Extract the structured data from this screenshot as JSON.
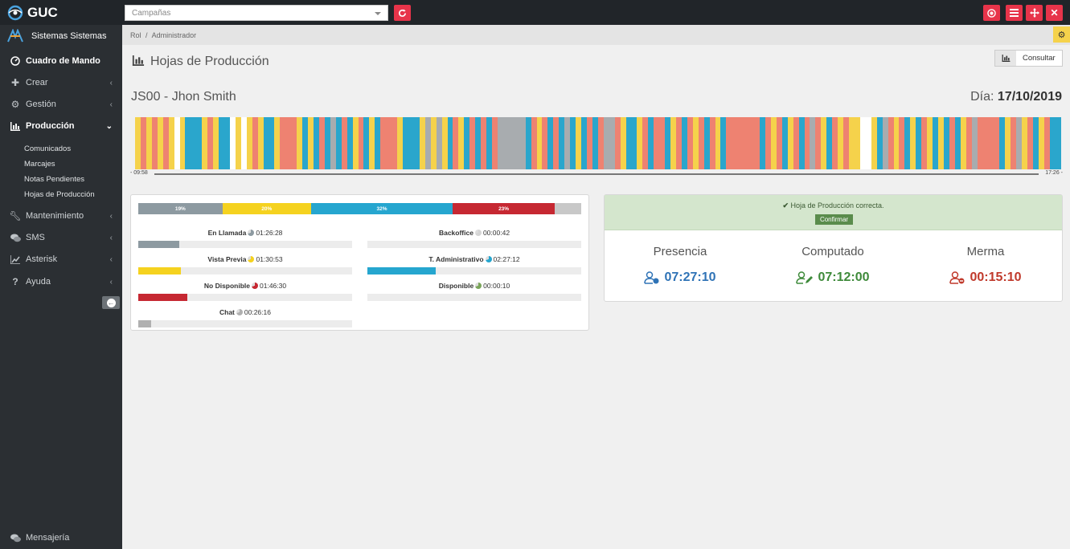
{
  "app": {
    "name": "GUC"
  },
  "topbar": {
    "campaign_placeholder": "Campañas",
    "colors": {
      "background": "#212529",
      "danger": "#e7344a"
    }
  },
  "sidebar": {
    "user_name": "Sistemas Sistemas",
    "items": [
      {
        "label": "Cuadro de Mando",
        "icon": "dashboard-icon"
      },
      {
        "label": "Crear",
        "icon": "plus-icon"
      },
      {
        "label": "Gestión",
        "icon": "gears-icon"
      },
      {
        "label": "Producción",
        "icon": "bar-chart-icon"
      },
      {
        "label": "Mantenimiento",
        "icon": "wrench-icon"
      },
      {
        "label": "SMS",
        "icon": "comments-icon"
      },
      {
        "label": "Asterisk",
        "icon": "area-chart-icon"
      },
      {
        "label": "Ayuda",
        "icon": "question-icon"
      }
    ],
    "subitems": [
      "Comunicados",
      "Marcajes",
      "Notas Pendientes",
      "Hojas de Producción"
    ],
    "footer": "Mensajería"
  },
  "breadcrumb": {
    "root": "Rol",
    "separator": "/",
    "current": "Administrador"
  },
  "page": {
    "title": "Hojas de Producción",
    "consult_label": "Consultar",
    "agent": "JS00 - Jhon Smith",
    "day_label": "Día:",
    "day_value": "17/10/2019"
  },
  "timeline": {
    "start": "- 09:58",
    "end": "17:26 -",
    "colors": {
      "yellow": "#f5d24b",
      "blue": "#2aa6cc",
      "salmon": "#ee8271",
      "gray": "#a8acaf",
      "red": "#c62832",
      "white": "#ffffff"
    },
    "segments": [
      [
        "yellow",
        1
      ],
      [
        "salmon",
        1
      ],
      [
        "yellow",
        1
      ],
      [
        "salmon",
        1
      ],
      [
        "yellow",
        1
      ],
      [
        "salmon",
        1
      ],
      [
        "yellow",
        1
      ],
      [
        "white",
        1
      ],
      [
        "yellow",
        1
      ],
      [
        "blue",
        3
      ],
      [
        "yellow",
        1
      ],
      [
        "salmon",
        1
      ],
      [
        "yellow",
        1
      ],
      [
        "blue",
        2
      ],
      [
        "white",
        1
      ],
      [
        "yellow",
        1
      ],
      [
        "white",
        1
      ],
      [
        "yellow",
        1
      ],
      [
        "salmon",
        1
      ],
      [
        "yellow",
        1
      ],
      [
        "blue",
        2
      ],
      [
        "yellow",
        1
      ],
      [
        "salmon",
        3
      ],
      [
        "yellow",
        1
      ],
      [
        "blue",
        1
      ],
      [
        "yellow",
        1
      ],
      [
        "blue",
        1
      ],
      [
        "salmon",
        1
      ],
      [
        "blue",
        1
      ],
      [
        "gray",
        1
      ],
      [
        "blue",
        1
      ],
      [
        "salmon",
        1
      ],
      [
        "blue",
        1
      ],
      [
        "yellow",
        1
      ],
      [
        "salmon",
        1
      ],
      [
        "blue",
        1
      ],
      [
        "yellow",
        1
      ],
      [
        "blue",
        1
      ],
      [
        "salmon",
        3
      ],
      [
        "yellow",
        1
      ],
      [
        "blue",
        3
      ],
      [
        "yellow",
        1
      ],
      [
        "gray",
        1
      ],
      [
        "yellow",
        1
      ],
      [
        "gray",
        1
      ],
      [
        "yellow",
        1
      ],
      [
        "blue",
        1
      ],
      [
        "salmon",
        1
      ],
      [
        "yellow",
        1
      ],
      [
        "blue",
        1
      ],
      [
        "salmon",
        1
      ],
      [
        "blue",
        1
      ],
      [
        "salmon",
        1
      ],
      [
        "blue",
        1
      ],
      [
        "salmon",
        1
      ],
      [
        "gray",
        5
      ],
      [
        "blue",
        1
      ],
      [
        "salmon",
        1
      ],
      [
        "yellow",
        1
      ],
      [
        "salmon",
        1
      ],
      [
        "blue",
        1
      ],
      [
        "salmon",
        1
      ],
      [
        "blue",
        1
      ],
      [
        "gray",
        1
      ],
      [
        "blue",
        1
      ],
      [
        "yellow",
        1
      ],
      [
        "blue",
        1
      ],
      [
        "salmon",
        1
      ],
      [
        "blue",
        1
      ],
      [
        "salmon",
        1
      ],
      [
        "gray",
        2
      ],
      [
        "salmon",
        1
      ],
      [
        "yellow",
        1
      ],
      [
        "blue",
        2
      ],
      [
        "yellow",
        1
      ],
      [
        "salmon",
        1
      ],
      [
        "blue",
        1
      ],
      [
        "salmon",
        2
      ],
      [
        "blue",
        1
      ],
      [
        "yellow",
        1
      ],
      [
        "salmon",
        1
      ],
      [
        "blue",
        1
      ],
      [
        "salmon",
        1
      ],
      [
        "yellow",
        1
      ],
      [
        "salmon",
        1
      ],
      [
        "blue",
        1
      ],
      [
        "salmon",
        1
      ],
      [
        "yellow",
        1
      ],
      [
        "blue",
        1
      ],
      [
        "salmon",
        6
      ],
      [
        "blue",
        1
      ],
      [
        "salmon",
        1
      ],
      [
        "yellow",
        1
      ],
      [
        "salmon",
        1
      ],
      [
        "blue",
        1
      ],
      [
        "yellow",
        1
      ],
      [
        "salmon",
        1
      ],
      [
        "blue",
        1
      ],
      [
        "salmon",
        1
      ],
      [
        "gray",
        1
      ],
      [
        "salmon",
        1
      ],
      [
        "yellow",
        1
      ],
      [
        "blue",
        1
      ],
      [
        "salmon",
        1
      ],
      [
        "yellow",
        1
      ],
      [
        "salmon",
        1
      ],
      [
        "yellow",
        2
      ],
      [
        "white",
        2
      ],
      [
        "yellow",
        1
      ],
      [
        "blue",
        1
      ],
      [
        "gray",
        1
      ],
      [
        "salmon",
        1
      ],
      [
        "yellow",
        1
      ],
      [
        "salmon",
        1
      ],
      [
        "blue",
        1
      ],
      [
        "yellow",
        1
      ],
      [
        "blue",
        1
      ],
      [
        "salmon",
        1
      ],
      [
        "yellow",
        1
      ],
      [
        "blue",
        1
      ],
      [
        "yellow",
        1
      ],
      [
        "blue",
        1
      ],
      [
        "salmon",
        1
      ],
      [
        "blue",
        1
      ],
      [
        "yellow",
        1
      ],
      [
        "salmon",
        1
      ],
      [
        "gray",
        1
      ],
      [
        "salmon",
        4
      ],
      [
        "blue",
        1
      ],
      [
        "yellow",
        1
      ],
      [
        "salmon",
        1
      ],
      [
        "gray",
        1
      ],
      [
        "yellow",
        1
      ],
      [
        "salmon",
        1
      ],
      [
        "blue",
        1
      ],
      [
        "yellow",
        1
      ],
      [
        "salmon",
        1
      ],
      [
        "blue",
        2
      ]
    ]
  },
  "distribution": [
    {
      "pct": "19%",
      "color": "#8d9aa1",
      "weight": 19
    },
    {
      "pct": "20%",
      "color": "#f5d21f",
      "weight": 20
    },
    {
      "pct": "32%",
      "color": "#26a6cf",
      "weight": 32
    },
    {
      "pct": "23%",
      "color": "#c62832",
      "weight": 23
    },
    {
      "pct": "",
      "color": "#c8c8c8",
      "weight": 6
    }
  ],
  "stats": [
    {
      "label": "En Llamada",
      "time": "01:26:28",
      "color": "#8d9aa1",
      "fill": 0.19
    },
    {
      "label": "Backoffice",
      "time": "00:00:42",
      "color": "#d5d5d5",
      "fill": 0.0
    },
    {
      "label": "Vista Previa",
      "time": "01:30:53",
      "color": "#f5d21f",
      "fill": 0.2
    },
    {
      "label": "T. Administrativo",
      "time": "02:27:12",
      "color": "#26a6cf",
      "fill": 0.32
    },
    {
      "label": "No Disponible",
      "time": "01:46:30",
      "color": "#c62832",
      "fill": 0.23
    },
    {
      "label": "Disponible",
      "time": "00:00:10",
      "color": "#7aa55a",
      "fill": 0.0
    },
    {
      "label": "Chat",
      "time": "00:26:16",
      "color": "#b0b0b0",
      "fill": 0.06
    }
  ],
  "status": {
    "message": "Hoja de Producción correcta.",
    "confirm_label": "Confirmar"
  },
  "metrics": [
    {
      "title": "Presencia",
      "value": "07:27:10",
      "color": "#2f73b6",
      "icon": "user-clock-icon"
    },
    {
      "title": "Computado",
      "value": "07:12:00",
      "color": "#3e8a3a",
      "icon": "user-edit-icon"
    },
    {
      "title": "Merma",
      "value": "00:15:10",
      "color": "#c0392b",
      "icon": "user-minus-icon"
    }
  ]
}
